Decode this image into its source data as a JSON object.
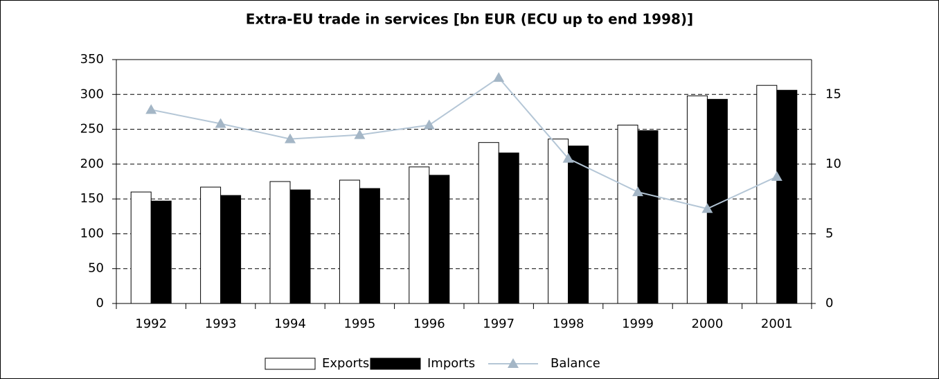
{
  "chart_data": {
    "type": "bar",
    "title": "Extra-EU trade in services [bn EUR (ECU up to end 1998)]",
    "categories": [
      "1992",
      "1993",
      "1994",
      "1995",
      "1996",
      "1997",
      "1998",
      "1999",
      "2000",
      "2001"
    ],
    "series": [
      {
        "name": "Exports",
        "color": "#ffffff",
        "values": [
          160,
          167,
          175,
          177,
          196,
          231,
          236,
          256,
          298,
          313
        ]
      },
      {
        "name": "Imports",
        "color": "#000000",
        "values": [
          147,
          155,
          163,
          165,
          184,
          216,
          226,
          248,
          293,
          306
        ]
      },
      {
        "name": "Balance",
        "color": "#b4c6d6",
        "axis": "y2",
        "values": [
          13.9,
          12.9,
          11.8,
          12.1,
          12.8,
          16.2,
          10.4,
          8.0,
          6.8,
          9.1
        ]
      }
    ],
    "ylim": [
      0,
      350
    ],
    "yticks": [
      0,
      50,
      100,
      150,
      200,
      250,
      300,
      350
    ],
    "y2lim": [
      0,
      17.5
    ],
    "y2ticks": [
      0,
      5,
      10,
      15
    ],
    "grid": true,
    "legend": "bottom"
  }
}
